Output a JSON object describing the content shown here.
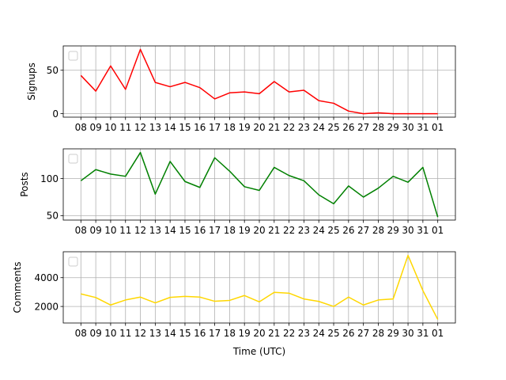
{
  "chart_data": [
    {
      "type": "line",
      "ylabel": "Signups",
      "xlabel": "",
      "ylim": [
        -4,
        78
      ],
      "yticks": [
        0,
        50
      ],
      "grid": true,
      "legend": "top-left (empty)",
      "categories": [
        "08",
        "09",
        "10",
        "11",
        "12",
        "13",
        "14",
        "15",
        "16",
        "17",
        "18",
        "19",
        "20",
        "21",
        "22",
        "23",
        "24",
        "25",
        "26",
        "27",
        "28",
        "29",
        "30",
        "31",
        "01"
      ],
      "series": [
        {
          "color": "#ff0000",
          "values": [
            44,
            26,
            55,
            28,
            74,
            36,
            31,
            36,
            30,
            17,
            24,
            25,
            23,
            37,
            25,
            27,
            15,
            12,
            3,
            0,
            1,
            0,
            0,
            0,
            0
          ]
        }
      ]
    },
    {
      "type": "line",
      "ylabel": "Posts",
      "xlabel": "",
      "ylim": [
        44,
        140
      ],
      "yticks": [
        50,
        100
      ],
      "grid": true,
      "legend": "top-left (empty)",
      "categories": [
        "08",
        "09",
        "10",
        "11",
        "12",
        "13",
        "14",
        "15",
        "16",
        "17",
        "18",
        "19",
        "20",
        "21",
        "22",
        "23",
        "24",
        "25",
        "26",
        "27",
        "28",
        "29",
        "30",
        "31",
        "01"
      ],
      "series": [
        {
          "color": "#008000",
          "values": [
            97,
            112,
            106,
            103,
            135,
            79,
            123,
            96,
            88,
            128,
            110,
            89,
            84,
            115,
            104,
            97,
            78,
            66,
            90,
            75,
            87,
            103,
            95,
            115,
            48
          ]
        }
      ]
    },
    {
      "type": "line",
      "ylabel": "Comments",
      "xlabel": "Time (UTC)",
      "ylim": [
        850,
        5800
      ],
      "yticks": [
        2000,
        4000
      ],
      "grid": true,
      "legend": "top-left (empty)",
      "categories": [
        "08",
        "09",
        "10",
        "11",
        "12",
        "13",
        "14",
        "15",
        "16",
        "17",
        "18",
        "19",
        "20",
        "21",
        "22",
        "23",
        "24",
        "25",
        "26",
        "27",
        "28",
        "29",
        "30",
        "31",
        "01"
      ],
      "series": [
        {
          "color": "#ffd700",
          "values": [
            2870,
            2620,
            2100,
            2450,
            2650,
            2250,
            2630,
            2700,
            2650,
            2360,
            2420,
            2760,
            2320,
            2980,
            2920,
            2520,
            2350,
            2000,
            2650,
            2100,
            2450,
            2520,
            5550,
            3100,
            1100
          ]
        }
      ]
    }
  ]
}
